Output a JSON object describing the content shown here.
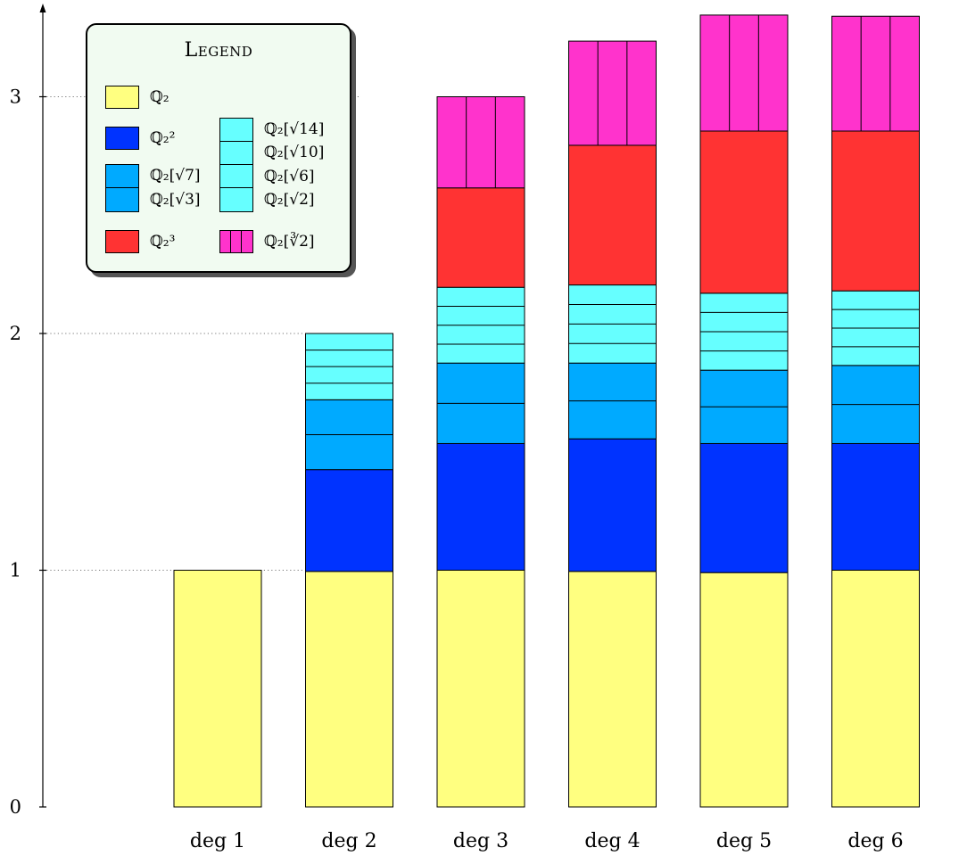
{
  "chart_data": {
    "type": "bar",
    "stacked": true,
    "categories": [
      "deg 1",
      "deg 2",
      "deg 3",
      "deg 4",
      "deg 5",
      "deg 6"
    ],
    "y_ticks": [
      "0",
      "1",
      "2",
      "3"
    ],
    "ylim": [
      0,
      3.37
    ],
    "grid": "dotted reference lines at y = 1, 2, 3",
    "legend": {
      "title": "Legend",
      "position": "top-left",
      "entries": [
        {
          "key": "q2",
          "label": "ℚ₂",
          "color": "#ffff80"
        },
        {
          "key": "q22",
          "label": "ℚ₂²",
          "color": "#0033ff"
        },
        {
          "key": "q2s7",
          "label": "ℚ₂[√7]",
          "color": "#00aaff"
        },
        {
          "key": "q2s3",
          "label": "ℚ₂[√3]",
          "color": "#00aaff"
        },
        {
          "key": "q2s14",
          "label": "ℚ₂[√14]",
          "color": "#66ffff"
        },
        {
          "key": "q2s10",
          "label": "ℚ₂[√10]",
          "color": "#66ffff"
        },
        {
          "key": "q2s6",
          "label": "ℚ₂[√6]",
          "color": "#66ffff"
        },
        {
          "key": "q2s2",
          "label": "ℚ₂[√2]",
          "color": "#66ffff"
        },
        {
          "key": "q23",
          "label": "ℚ₂³",
          "color": "#ff3333"
        },
        {
          "key": "q2cbrt2",
          "label": "ℚ₂[∛2]",
          "color": "#ff33cc"
        }
      ]
    },
    "series": [
      {
        "name": "ℚ₂",
        "color": "#ffff80",
        "divisions": 1,
        "values": [
          1.0,
          0.995,
          1.0,
          0.995,
          0.99,
          1.0
        ]
      },
      {
        "name": "ℚ₂²",
        "color": "#0033ff",
        "divisions": 1,
        "values": [
          0,
          0.43,
          0.535,
          0.56,
          0.545,
          0.535
        ]
      },
      {
        "name": "ℚ₂[√3] / ℚ₂[√7]",
        "color": "#00aaff",
        "divisions": 2,
        "values": [
          0,
          0.295,
          0.34,
          0.32,
          0.31,
          0.33
        ]
      },
      {
        "name": "ℚ₂[√2] / ℚ₂[√6] / ℚ₂[√10] / ℚ₂[√14]",
        "color": "#66ffff",
        "divisions": 4,
        "values": [
          0,
          0.28,
          0.32,
          0.33,
          0.325,
          0.315
        ]
      },
      {
        "name": "ℚ₂³",
        "color": "#ff3333",
        "divisions": 1,
        "values": [
          0,
          0,
          0.42,
          0.59,
          0.685,
          0.675
        ]
      },
      {
        "name": "ℚ₂[∛2]",
        "color": "#ff33cc",
        "divisions": 3,
        "values": [
          0,
          0,
          0.385,
          0.44,
          0.49,
          0.485
        ],
        "split": "vertical"
      }
    ]
  }
}
